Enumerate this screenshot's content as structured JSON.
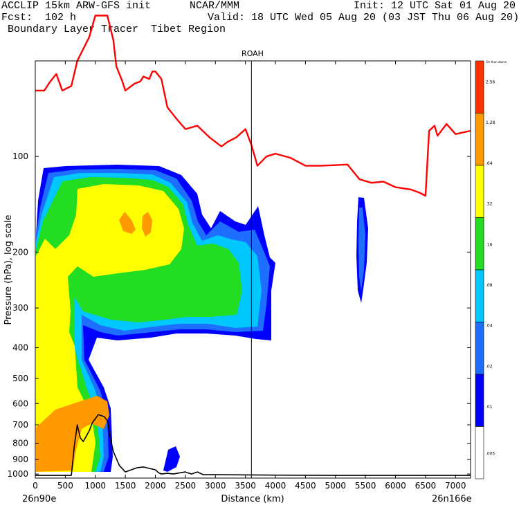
{
  "header": {
    "line1_left": "ACCLIP 15km ARW-GFS init",
    "line1_center": "NCAR/MMM",
    "line1_right": "Init: 12 UTC Sat 01 Aug 20",
    "line2_left": "Fcst:  102 h",
    "line2_right": "Valid: 18 UTC Wed 05 Aug 20 (03 JST Thu 06 Aug 20)",
    "line3_left": " Boundary Layer Tracer  Tibet Region"
  },
  "chart_data": {
    "type": "contour-cross-section",
    "title": "ROAH",
    "xlabel": "Distance (km)",
    "ylabel": "Pressure (hPa), log scale",
    "x_ticks": [
      "0",
      "500",
      "1000",
      "1500",
      "2000",
      "2500",
      "3000",
      "3500",
      "4000",
      "4500",
      "5000",
      "5500",
      "6000",
      "6500",
      "7000"
    ],
    "y_ticks": [
      "100",
      "200",
      "300",
      "400",
      "500",
      "600",
      "700",
      "800",
      "900",
      "1000"
    ],
    "x_end_labels": {
      "left": "26n90e",
      "right": "26n166e"
    },
    "xlim": [
      0,
      7250
    ],
    "ylim_hpa": [
      1030,
      50
    ],
    "y_scale": "log",
    "marker_x_km": 3600,
    "colorbar_labels": [
      "Gtr than above",
      "2.56",
      "1.28",
      ".64",
      ".32",
      ".16",
      ".08",
      ".04",
      ".02",
      ".01",
      ".005"
    ],
    "colors": {
      "c1": "#0000ff",
      "c2": "#1e6eff",
      "c3": "#00c8ff",
      "c4": "#22dd22",
      "c5": "#ffff00",
      "c6": "#ff9900",
      "c7": "#ff3300",
      "tropopause": "#ff0000",
      "terrain": "#000000"
    },
    "tropopause_hpa": [
      [
        0,
        62
      ],
      [
        150,
        62
      ],
      [
        250,
        58
      ],
      [
        350,
        55
      ],
      [
        450,
        62
      ],
      [
        600,
        60
      ],
      [
        700,
        50
      ],
      [
        900,
        42
      ],
      [
        1000,
        36
      ],
      [
        1100,
        36
      ],
      [
        1200,
        36
      ],
      [
        1300,
        43
      ],
      [
        1350,
        52
      ],
      [
        1450,
        58
      ],
      [
        1500,
        62
      ],
      [
        1650,
        59
      ],
      [
        1750,
        58
      ],
      [
        1800,
        56
      ],
      [
        1900,
        57
      ],
      [
        1950,
        54
      ],
      [
        2000,
        54
      ],
      [
        2100,
        57
      ],
      [
        2200,
        70
      ],
      [
        2350,
        76
      ],
      [
        2500,
        82
      ],
      [
        2700,
        80
      ],
      [
        2900,
        87
      ],
      [
        3100,
        93
      ],
      [
        3200,
        90
      ],
      [
        3350,
        87
      ],
      [
        3500,
        82
      ],
      [
        3600,
        92
      ],
      [
        3700,
        107
      ],
      [
        3850,
        100
      ],
      [
        4000,
        98
      ],
      [
        4250,
        101
      ],
      [
        4500,
        107
      ],
      [
        4750,
        107
      ],
      [
        5200,
        106
      ],
      [
        5400,
        118
      ],
      [
        5600,
        121
      ],
      [
        5800,
        120
      ],
      [
        6000,
        125
      ],
      [
        6250,
        127
      ],
      [
        6400,
        130
      ],
      [
        6500,
        133
      ],
      [
        6560,
        83
      ],
      [
        6650,
        80
      ],
      [
        6700,
        86
      ],
      [
        6850,
        79
      ],
      [
        7000,
        85
      ],
      [
        7250,
        83
      ]
    ],
    "terrain_hpa": [
      [
        0,
        1010
      ],
      [
        500,
        1010
      ],
      [
        600,
        1010
      ],
      [
        650,
        815
      ],
      [
        700,
        700
      ],
      [
        750,
        770
      ],
      [
        800,
        790
      ],
      [
        900,
        730
      ],
      [
        950,
        690
      ],
      [
        1050,
        650
      ],
      [
        1150,
        660
      ],
      [
        1200,
        680
      ],
      [
        1250,
        770
      ],
      [
        1300,
        850
      ],
      [
        1400,
        940
      ],
      [
        1500,
        985
      ],
      [
        1700,
        955
      ],
      [
        1800,
        950
      ],
      [
        1900,
        960
      ],
      [
        2000,
        970
      ],
      [
        2050,
        990
      ],
      [
        2100,
        1000
      ],
      [
        2200,
        995
      ],
      [
        2300,
        1000
      ],
      [
        2500,
        985
      ],
      [
        2600,
        1000
      ],
      [
        2700,
        985
      ],
      [
        2800,
        1005
      ],
      [
        3000,
        1005
      ],
      [
        4000,
        1008
      ],
      [
        5000,
        1010
      ],
      [
        7250,
        1010
      ]
    ]
  }
}
